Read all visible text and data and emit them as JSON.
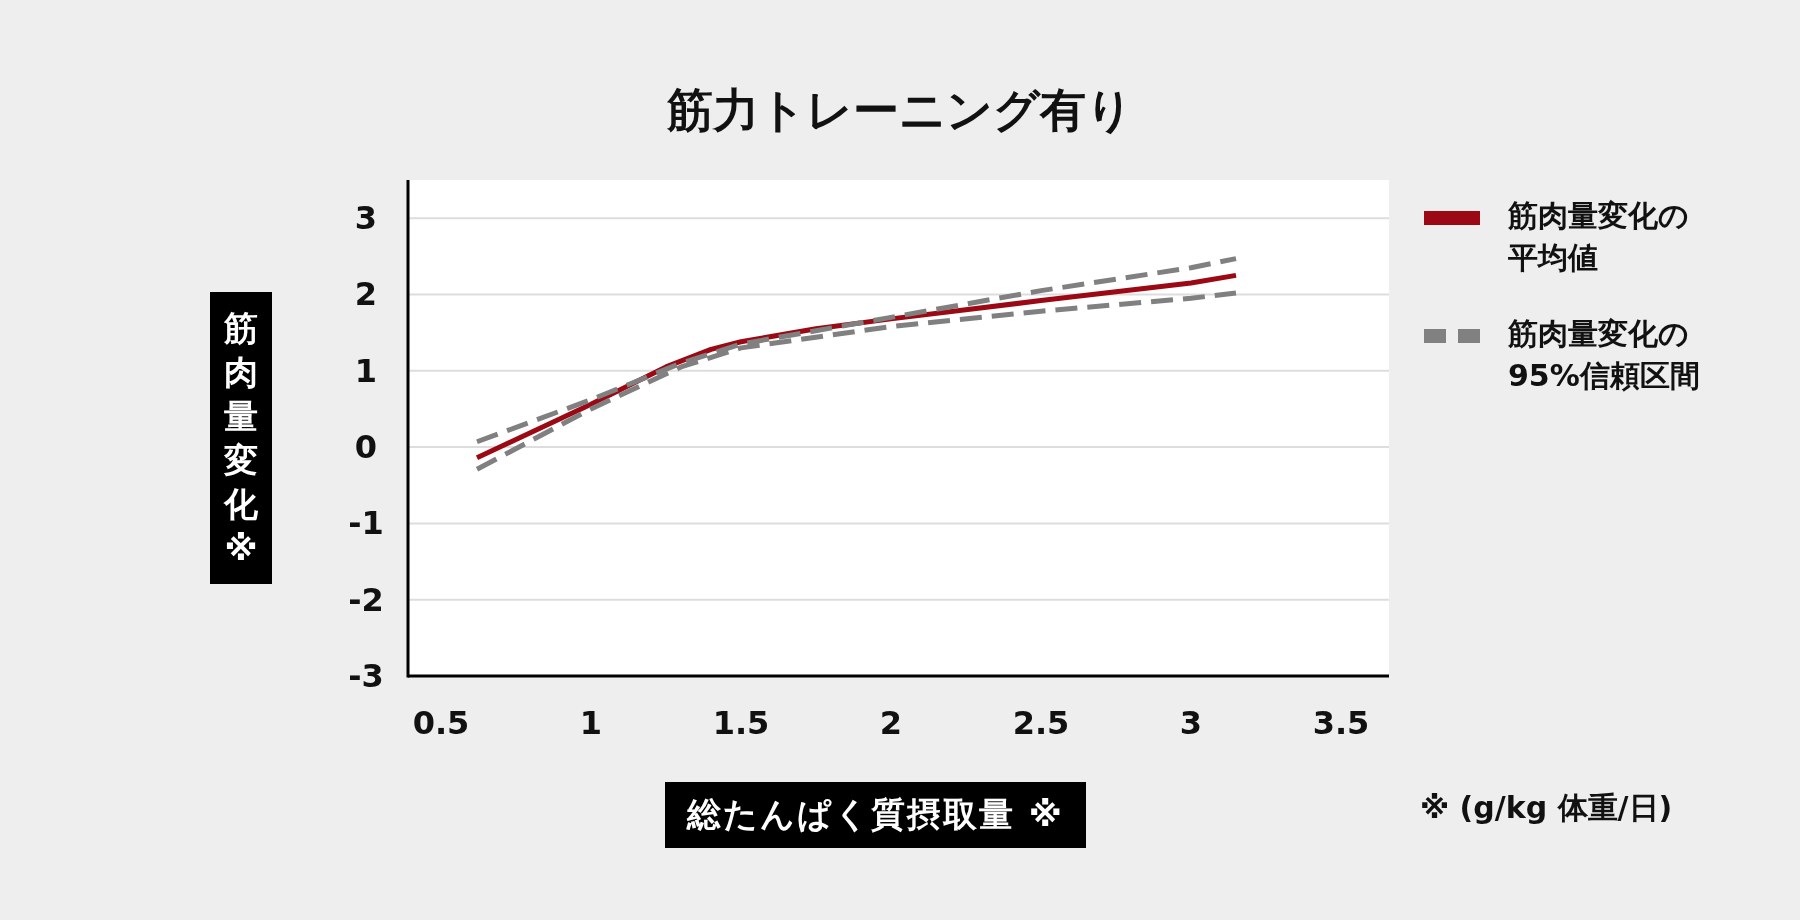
{
  "chart_data": {
    "type": "line",
    "title": "筋力トレーニング有り",
    "xlabel": "総たんぱく質摂取量 ※",
    "ylabel": "筋肉量変化 ※",
    "xlim": [
      0.39,
      3.66
    ],
    "xticks": [
      0.5,
      1,
      1.5,
      2,
      2.5,
      3,
      3.5
    ],
    "ylim": [
      -3,
      3.5
    ],
    "yticks": [
      -3,
      -2,
      -1,
      0,
      1,
      2,
      3
    ],
    "grid": "y",
    "legend": "top right",
    "annotations": [
      "※ (g/kg 体重/日)"
    ],
    "series": [
      {
        "name": "筋肉量変化の平均値",
        "color": "#9b0a14",
        "line_style": "solid",
        "x": [
          0.62,
          1.0,
          1.25,
          1.4,
          1.5,
          1.75,
          2.0,
          2.5,
          3.0,
          3.15
        ],
        "values": [
          -0.14,
          0.56,
          1.05,
          1.28,
          1.38,
          1.55,
          1.68,
          1.92,
          2.15,
          2.25
        ]
      },
      {
        "name": "筋肉量変化の95%信頼区間",
        "color": "#808080",
        "line_style": "dashed",
        "x": [
          0.62,
          1.0,
          1.3,
          1.5,
          2.0,
          2.5,
          3.0,
          3.15
        ],
        "values": [
          0.07,
          0.62,
          1.1,
          1.35,
          1.7,
          2.05,
          2.35,
          2.47
        ]
      },
      {
        "color": "#808080",
        "line_style": "dashed",
        "x": [
          0.62,
          1.0,
          1.3,
          1.5,
          2.0,
          2.5,
          3.0,
          3.15
        ],
        "values": [
          -0.29,
          0.5,
          1.05,
          1.3,
          1.58,
          1.78,
          1.95,
          2.02
        ]
      }
    ]
  }
}
